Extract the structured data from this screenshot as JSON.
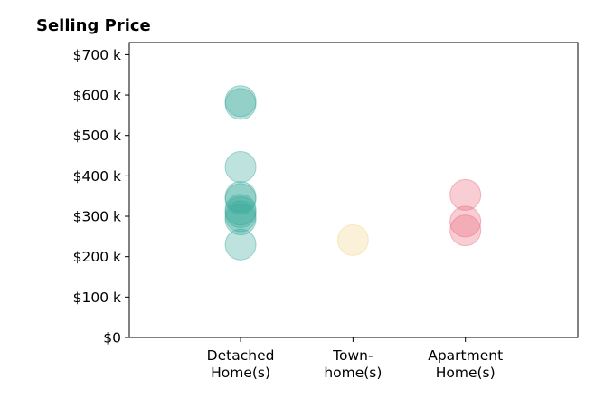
{
  "chart_data": {
    "type": "scatter",
    "title": "Selling Price",
    "xlabel": "",
    "ylabel": "",
    "categories": [
      [
        "Detached",
        "Home(s)"
      ],
      [
        "Town-",
        "home(s)"
      ],
      [
        "Apartment",
        "Home(s)"
      ]
    ],
    "xlim": [
      -0.99,
      3.0
    ],
    "ylim": [
      0,
      730
    ],
    "yticks": [
      0,
      100,
      200,
      300,
      400,
      500,
      600,
      700
    ],
    "ytick_labels": [
      "$0",
      "$100 k",
      "$200 k",
      "$300 k",
      "$400 k",
      "$500 k",
      "$600 k",
      "$700 k"
    ],
    "grid": false,
    "series": [
      {
        "category": 0,
        "color": "#3aab9b",
        "values": [
          585,
          578,
          422,
          348,
          343,
          316,
          310,
          300,
          292,
          230
        ]
      },
      {
        "category": 1,
        "color": "#f2d48a",
        "values": [
          241
        ]
      },
      {
        "category": 2,
        "color": "#ea6a7c",
        "values": [
          353,
          287,
          265
        ]
      }
    ]
  }
}
